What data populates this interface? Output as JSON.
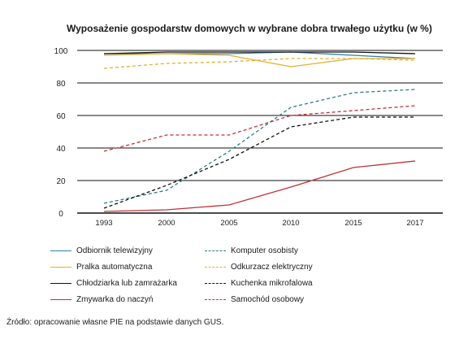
{
  "chart_data": {
    "type": "line",
    "title": "Wyposażenie gospodarstw domowych w wybrane dobra trwałego użytku (w %)",
    "x": [
      "1993",
      "2000",
      "2005",
      "2010",
      "2015",
      "2017"
    ],
    "ylim": [
      0,
      100
    ],
    "yticks": [
      "0",
      "20",
      "40",
      "60",
      "80",
      "100"
    ],
    "grid": "horizontal",
    "legend_position": "bottom",
    "series": [
      {
        "name": "Odbiornik telewizyjny",
        "values": [
          98,
          98,
          98,
          99,
          97,
          95
        ],
        "color": "#2f7ea8",
        "dash": "solid"
      },
      {
        "name": "Komputer osobisty",
        "values": [
          6,
          14,
          38,
          65,
          74,
          76
        ],
        "color": "#2e7d7d",
        "dash": "dashed"
      },
      {
        "name": "Pralka automatyczna",
        "values": [
          97,
          98,
          97,
          90,
          95,
          95
        ],
        "color": "#e0b030",
        "dash": "solid"
      },
      {
        "name": "Odkurzacz elektryczny",
        "values": [
          89,
          92,
          93,
          95,
          95,
          94
        ],
        "color": "#e0b030",
        "dash": "dashed"
      },
      {
        "name": "Chłodziarka lub zamrażarka",
        "values": [
          98,
          99,
          99,
          99,
          99,
          98
        ],
        "color": "#111111",
        "dash": "solid"
      },
      {
        "name": "Kuchenka mikrofalowa",
        "values": [
          3,
          17,
          33,
          53,
          59,
          59
        ],
        "color": "#111111",
        "dash": "dashed"
      },
      {
        "name": "Zmywarka do naczyń",
        "values": [
          1,
          2,
          5,
          16,
          28,
          32
        ],
        "color": "#c0313a",
        "dash": "solid"
      },
      {
        "name": "Samochód osobowy",
        "values": [
          38,
          48,
          48,
          60,
          63,
          66
        ],
        "color": "#c0313a",
        "dash": "dashed"
      }
    ]
  },
  "source": "Źródło: opracowanie własne PIE na podstawie danych GUS."
}
